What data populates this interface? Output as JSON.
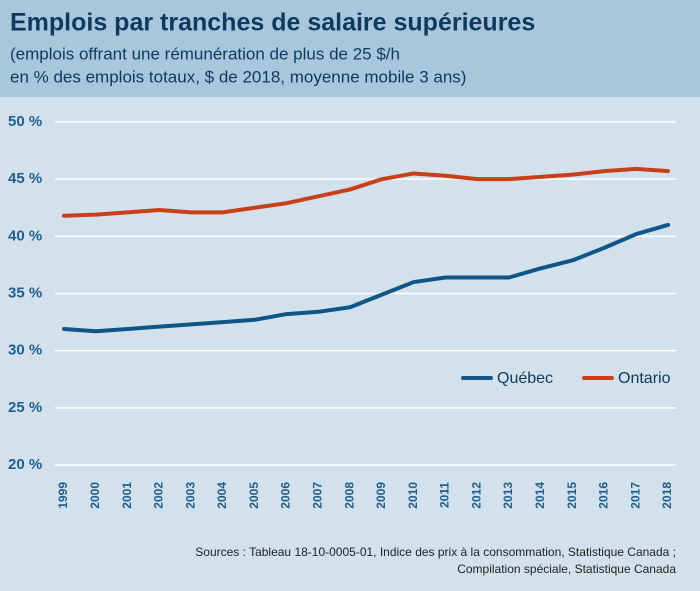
{
  "chart_data": {
    "type": "line",
    "title": "Emplois par tranches de salaire supérieures",
    "subtitle": [
      "(emplois offrant une rémunération de plus de 25 $/h",
      "en % des emplois totaux, $ de 2018, moyenne mobile 3 ans)"
    ],
    "categories": [
      "1999",
      "2000",
      "2001",
      "2002",
      "2003",
      "2004",
      "2005",
      "2006",
      "2007",
      "2008",
      "2009",
      "2010",
      "2011",
      "2012",
      "2013",
      "2014",
      "2015",
      "2016",
      "2017",
      "2018"
    ],
    "series": [
      {
        "name": "Québec",
        "color": "#0f5587",
        "values": [
          31.9,
          31.7,
          31.9,
          32.1,
          32.3,
          32.5,
          32.7,
          33.2,
          33.4,
          33.8,
          34.9,
          36.0,
          36.4,
          36.4,
          36.4,
          37.2,
          37.9,
          39.0,
          40.2,
          41.0
        ]
      },
      {
        "name": "Ontario",
        "color": "#c8401a",
        "values": [
          41.8,
          41.9,
          42.1,
          42.3,
          42.1,
          42.1,
          42.5,
          42.9,
          43.5,
          44.1,
          45.0,
          45.5,
          45.3,
          45.0,
          45.0,
          45.2,
          45.4,
          45.7,
          45.9,
          45.7
        ]
      }
    ],
    "ylim": [
      20,
      50
    ],
    "yticks": [
      {
        "value": 20,
        "label": "20 %"
      },
      {
        "value": 25,
        "label": "25 %"
      },
      {
        "value": 30,
        "label": "30 %"
      },
      {
        "value": 35,
        "label": "35 %"
      },
      {
        "value": 40,
        "label": "40 %"
      },
      {
        "value": 45,
        "label": "45 %"
      },
      {
        "value": 50,
        "label": "50 %"
      }
    ],
    "grid": true,
    "legend": "right",
    "sources": [
      "Sources : Tableau 18-10-0005-01, Indice des prix à la consommation, Statistique Canada ;",
      "Compilation spéciale, Statistique Canada"
    ]
  }
}
